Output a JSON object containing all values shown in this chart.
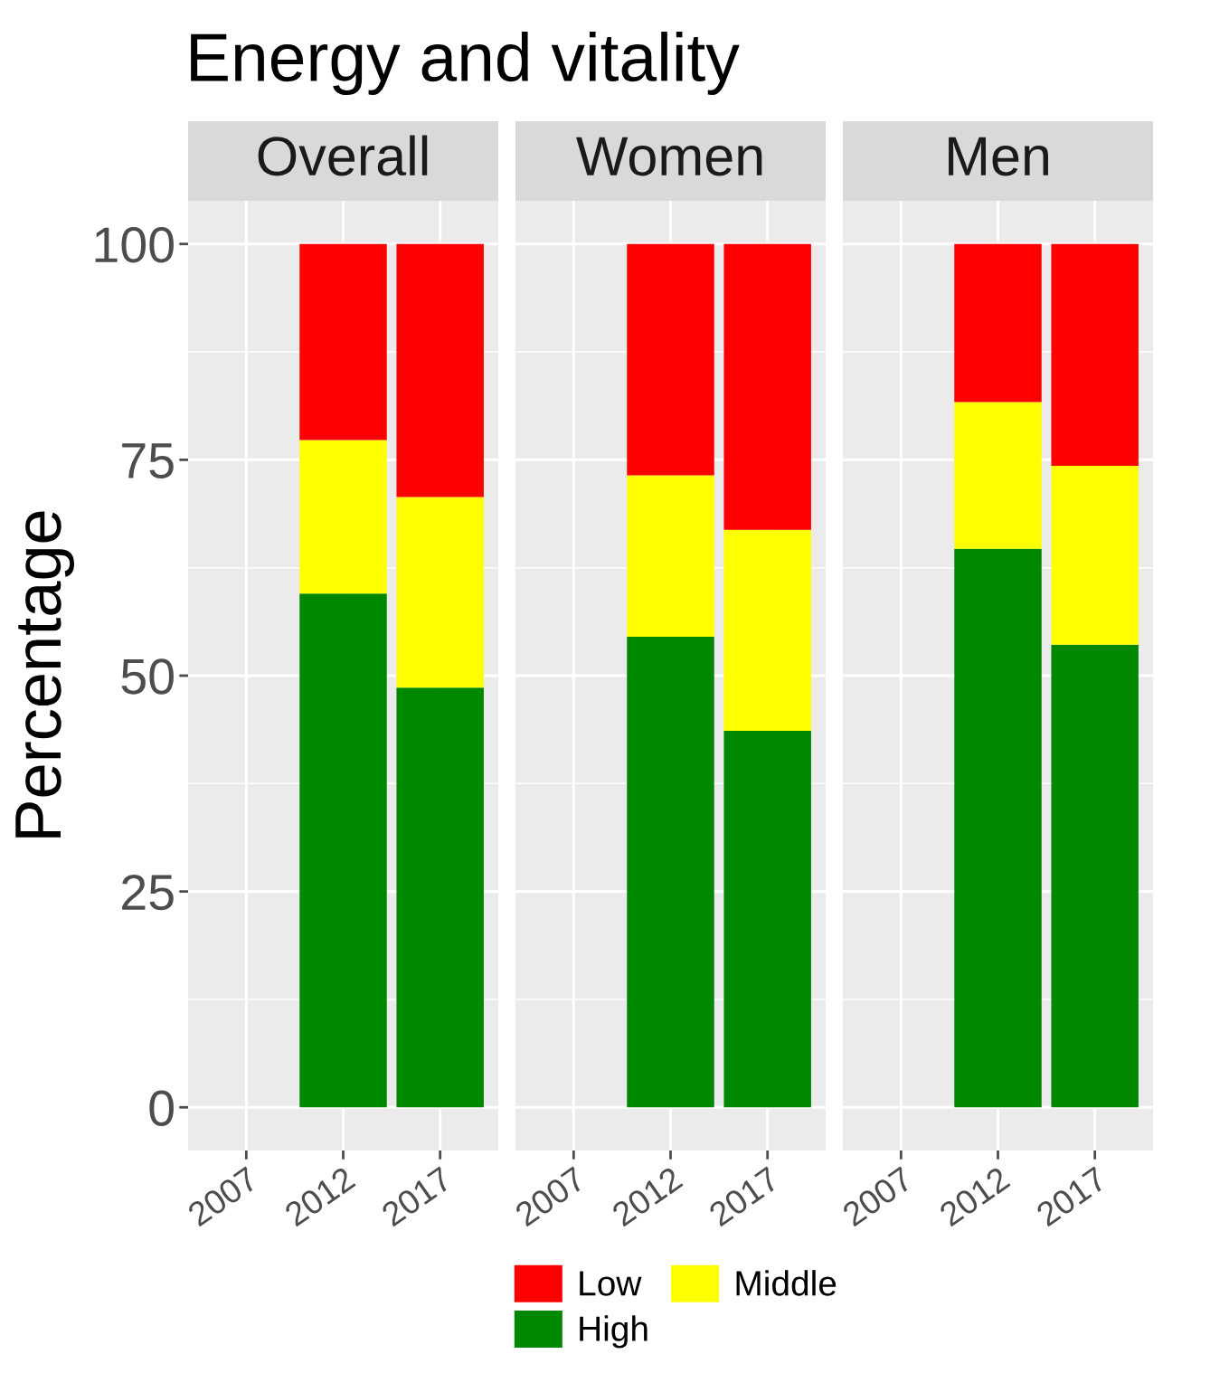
{
  "chart_data": [
    {
      "type": "bar",
      "title": "Overall",
      "annotations": [
        "Energy and vitality"
      ],
      "ylabel": "Percentage",
      "stacked": true,
      "categories": [
        "2007",
        "2012",
        "2017"
      ],
      "ylim": [
        -5,
        105
      ],
      "yticks": [
        0,
        25,
        50,
        75,
        100
      ],
      "grid": true,
      "legend": "bottom",
      "series": [
        {
          "name": "High",
          "color": "#008800",
          "values": [
            null,
            59.5,
            48.6
          ]
        },
        {
          "name": "Middle",
          "color": "#ffff00",
          "values": [
            null,
            17.8,
            22.1
          ]
        },
        {
          "name": "Low",
          "color": "#ff0000",
          "values": [
            null,
            22.7,
            29.3
          ]
        }
      ]
    },
    {
      "type": "bar",
      "title": "Women",
      "stacked": true,
      "categories": [
        "2007",
        "2012",
        "2017"
      ],
      "ylim": [
        -5,
        105
      ],
      "yticks": [
        0,
        25,
        50,
        75,
        100
      ],
      "grid": true,
      "tick_labels": "x",
      "series": [
        {
          "color": "#008800",
          "values": [
            null,
            54.5,
            43.6
          ]
        },
        {
          "color": "#ffff00",
          "values": [
            null,
            18.7,
            23.3
          ]
        },
        {
          "color": "#ff0000",
          "values": [
            null,
            26.8,
            33.1
          ]
        }
      ]
    },
    {
      "type": "bar",
      "title": "Men",
      "stacked": true,
      "categories": [
        "2007",
        "2012",
        "2017"
      ],
      "ylim": [
        -5,
        105
      ],
      "yticks": [
        0,
        25,
        50,
        75,
        100
      ],
      "grid": true,
      "tick_labels": "x",
      "series": [
        {
          "color": "#008800",
          "values": [
            null,
            64.7,
            53.6
          ]
        },
        {
          "color": "#ffff00",
          "values": [
            null,
            17.0,
            20.7
          ]
        },
        {
          "color": "#ff0000",
          "values": [
            null,
            18.3,
            25.7
          ]
        }
      ]
    }
  ]
}
